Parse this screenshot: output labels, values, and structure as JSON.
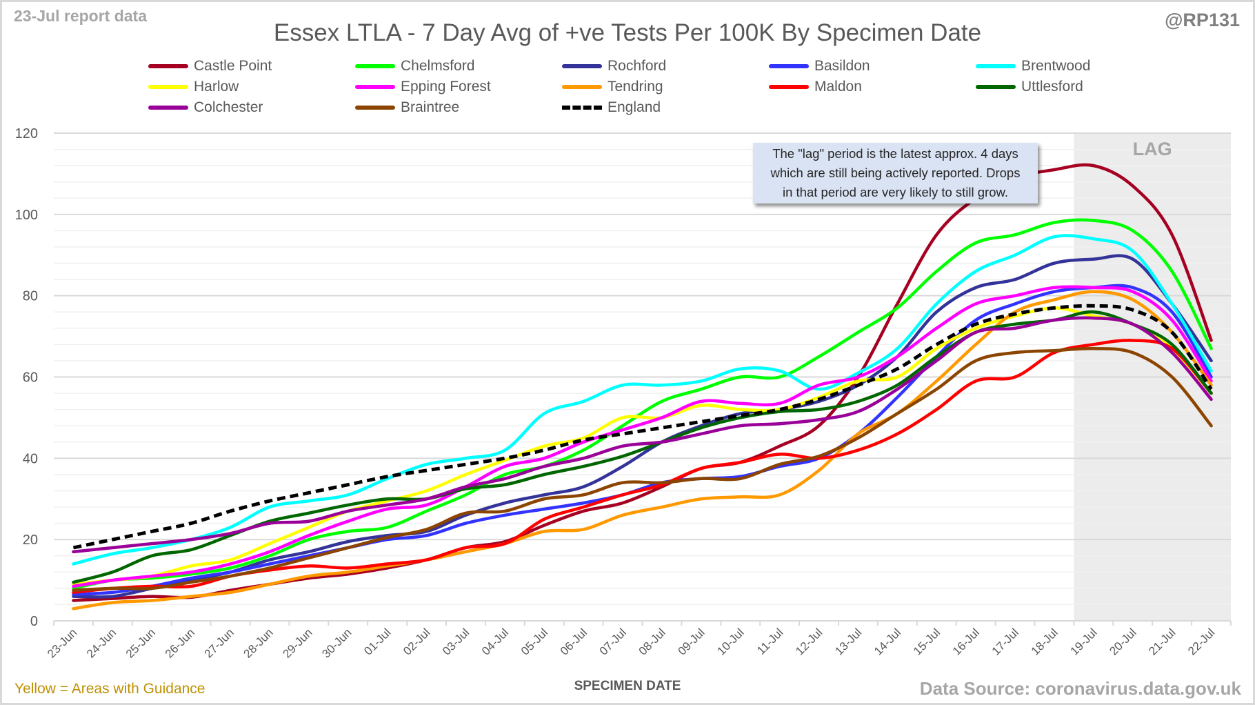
{
  "header": {
    "report_label": "23-Jul report data",
    "handle": "@RP131"
  },
  "footer": {
    "guidance_note": "Yellow = Areas with Guidance",
    "source": "Data Source: coronavirus.data.gov.uk"
  },
  "annotation": {
    "lines": [
      "The \"lag\" period is the latest approx. 4 days",
      "which are still being actively reported.  Drops",
      "in that period are very likely to still grow."
    ]
  },
  "chart_data": {
    "type": "line",
    "title": "Essex LTLA - 7 Day Avg of +ve Tests Per 100K By Specimen Date",
    "xlabel": "SPECIMEN DATE",
    "ylabel": "",
    "ylim": [
      0,
      120
    ],
    "yticks": [
      0,
      20,
      40,
      60,
      80,
      100,
      120
    ],
    "minor_grid_step": 4,
    "grid": true,
    "legend_position": "top",
    "shaded_region": {
      "label": "LAG",
      "from": "19-Jul",
      "to": "22-Jul",
      "color": "#ececec"
    },
    "categories": [
      "23-Jun",
      "24-Jun",
      "25-Jun",
      "26-Jun",
      "27-Jun",
      "28-Jun",
      "29-Jun",
      "30-Jun",
      "01-Jul",
      "02-Jul",
      "03-Jul",
      "04-Jul",
      "05-Jul",
      "06-Jul",
      "07-Jul",
      "08-Jul",
      "09-Jul",
      "10-Jul",
      "11-Jul",
      "12-Jul",
      "13-Jul",
      "14-Jul",
      "15-Jul",
      "16-Jul",
      "17-Jul",
      "18-Jul",
      "19-Jul",
      "20-Jul",
      "21-Jul",
      "22-Jul"
    ],
    "series": [
      {
        "name": "Castle Point",
        "color": "#a50021",
        "dashed": false,
        "values": [
          5,
          5.5,
          6,
          5.8,
          7.5,
          9,
          10.5,
          11.5,
          13,
          15,
          18,
          19.5,
          23.5,
          27,
          29,
          33,
          37.5,
          39,
          43,
          48,
          60,
          78,
          95,
          104,
          109,
          111,
          112,
          107,
          95,
          69
        ]
      },
      {
        "name": "Chelmsford",
        "color": "#00ff00",
        "dashed": false,
        "values": [
          8,
          10,
          10.5,
          11.5,
          13,
          16,
          20,
          22,
          23,
          27,
          31,
          36,
          38,
          42,
          48,
          54,
          57,
          60,
          60,
          65,
          71,
          77,
          86,
          93,
          95,
          98,
          98.5,
          96,
          86,
          67
        ]
      },
      {
        "name": "Rochford",
        "color": "#333399",
        "dashed": false,
        "values": [
          6,
          6,
          8,
          10,
          12,
          15,
          17,
          19.5,
          21,
          22,
          26,
          29,
          31,
          33,
          38,
          44,
          48,
          51,
          52,
          54,
          58,
          65,
          76,
          82,
          84,
          88,
          89,
          89,
          78,
          64
        ]
      },
      {
        "name": "Basildon",
        "color": "#3333ff",
        "dashed": false,
        "values": [
          6.5,
          7,
          8.5,
          10.5,
          12,
          14,
          16,
          18,
          20,
          21,
          24,
          26,
          27.5,
          29,
          31,
          34,
          35,
          35.5,
          38,
          40,
          46,
          55,
          65,
          74,
          78,
          81,
          82,
          82,
          76,
          60
        ]
      },
      {
        "name": "Brentwood",
        "color": "#00ffff",
        "dashed": false,
        "values": [
          14,
          16.5,
          18,
          20,
          23,
          28,
          29.5,
          31,
          35,
          38.5,
          40,
          42,
          51,
          54,
          58,
          58,
          59,
          62,
          61.5,
          57,
          61,
          67,
          78,
          86,
          90,
          94.5,
          94,
          91,
          78,
          61.5
        ]
      },
      {
        "name": "Harlow",
        "color": "#ffff00",
        "dashed": false,
        "values": [
          9,
          10,
          11,
          13.5,
          15,
          19,
          23,
          27,
          29.5,
          32,
          36,
          39.5,
          43,
          45,
          50,
          50,
          53,
          52,
          52,
          55,
          59,
          60,
          67,
          72,
          75,
          77,
          75,
          73,
          67,
          56
        ]
      },
      {
        "name": "Epping Forest",
        "color": "#ff00ff",
        "dashed": false,
        "values": [
          8.5,
          10,
          11,
          12,
          14,
          17,
          21,
          24.5,
          27.5,
          28.5,
          33,
          38,
          40,
          44,
          47,
          50,
          54,
          53.5,
          53.5,
          58,
          60,
          65,
          72,
          78,
          80,
          82,
          82,
          81,
          74,
          59
        ]
      },
      {
        "name": "Tendring",
        "color": "#ff9900",
        "dashed": false,
        "values": [
          3,
          4.5,
          5,
          6,
          7,
          9,
          11,
          12,
          13.5,
          15,
          17,
          19,
          22,
          22.5,
          26,
          28,
          30,
          30.5,
          31,
          37,
          46,
          51,
          59,
          68,
          76,
          79,
          81,
          79,
          71,
          58
        ]
      },
      {
        "name": "Maldon",
        "color": "#ff0000",
        "dashed": false,
        "values": [
          7,
          8,
          8.5,
          8.5,
          11,
          12.5,
          13.5,
          13,
          14,
          15,
          18,
          19,
          25,
          28,
          31,
          33.5,
          37.5,
          39,
          41,
          40,
          42,
          46,
          52,
          59,
          60,
          66,
          68,
          69,
          67,
          56
        ]
      },
      {
        "name": "Uttlesford",
        "color": "#006600",
        "dashed": false,
        "values": [
          9.5,
          12,
          16,
          17.5,
          21,
          24.5,
          26.5,
          28.5,
          30,
          30,
          32.5,
          33.5,
          36,
          38,
          40.5,
          44,
          47.5,
          50,
          51.5,
          52,
          54,
          58,
          65,
          71,
          73,
          74,
          76,
          73,
          68,
          56
        ]
      },
      {
        "name": "Colchester",
        "color": "#990099",
        "dashed": false,
        "values": [
          17,
          18,
          19,
          20,
          21.5,
          24,
          24.5,
          27,
          28.5,
          30,
          33,
          35,
          38,
          40,
          43,
          44,
          46,
          48,
          48.5,
          49.5,
          51.5,
          57,
          64,
          71,
          72,
          74,
          74.5,
          73,
          66,
          54.5
        ]
      },
      {
        "name": "Braintree",
        "color": "#8b4500",
        "dashed": false,
        "values": [
          7.5,
          8,
          8,
          9.5,
          11,
          13,
          15.5,
          18,
          20.5,
          22.5,
          26.5,
          27,
          30,
          31,
          34,
          34,
          35,
          35,
          38.5,
          40.5,
          45,
          51,
          57,
          64,
          66,
          66.5,
          67,
          66,
          60,
          48
        ]
      },
      {
        "name": "England",
        "color": "#000000",
        "dashed": true,
        "values": [
          18,
          20,
          22,
          24,
          27,
          29.5,
          31.5,
          33.5,
          35.5,
          37,
          38.5,
          40,
          42,
          44.5,
          46,
          47.5,
          49,
          50.5,
          52,
          54.5,
          58,
          62,
          68,
          73,
          75.5,
          77,
          77.5,
          76.5,
          71,
          57
        ]
      }
    ]
  }
}
